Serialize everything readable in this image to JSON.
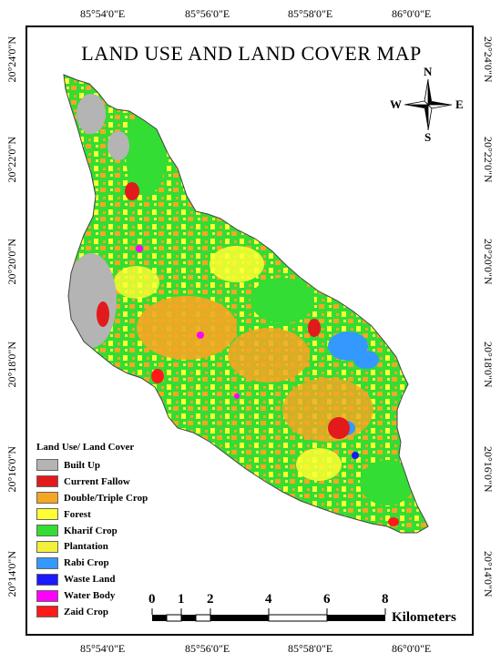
{
  "map": {
    "title": "LAND USE AND LAND COVER MAP",
    "coordinates": {
      "top": [
        "85°54'0\"E",
        "85°56'0\"E",
        "85°58'0\"E",
        "86°0'0\"E"
      ],
      "bottom": [
        "85°54'0\"E",
        "85°56'0\"E",
        "85°58'0\"E",
        "86°0'0\"E"
      ],
      "left": [
        "20°24'0\"N",
        "20°22'0\"N",
        "20°20'0\"N",
        "20°18'0\"N",
        "20°16'0\"N",
        "20°14'0\"N"
      ],
      "right": [
        "20°24'0\"N",
        "20°22'0\"N",
        "20°20'0\"N",
        "20°18'0\"N",
        "20°16'0\"N",
        "20°14'0\"N"
      ]
    },
    "compass": {
      "north": "N",
      "south": "S",
      "east": "E",
      "west": "W"
    },
    "legend": {
      "title": "Land Use/ Land Cover",
      "items": [
        {
          "label": "Built Up",
          "color": "#b4b4b4"
        },
        {
          "label": "Current Fallow",
          "color": "#e31a1c"
        },
        {
          "label": "Double/Triple Crop",
          "color": "#f5a623"
        },
        {
          "label": "Forest",
          "color": "#ffff33"
        },
        {
          "label": "Kharif Crop",
          "color": "#33dd33"
        },
        {
          "label": "Plantation",
          "color": "#f2f03a"
        },
        {
          "label": "Rabi Crop",
          "color": "#3399ff"
        },
        {
          "label": "Waste Land",
          "color": "#1a1aff"
        },
        {
          "label": "Water Body",
          "color": "#ff00ff"
        },
        {
          "label": "Zaid Crop",
          "color": "#ff1a1a"
        }
      ]
    },
    "scale_bar": {
      "labels": [
        "0",
        "1",
        "2",
        "4",
        "6",
        "8"
      ],
      "unit": "Kilometers"
    }
  }
}
